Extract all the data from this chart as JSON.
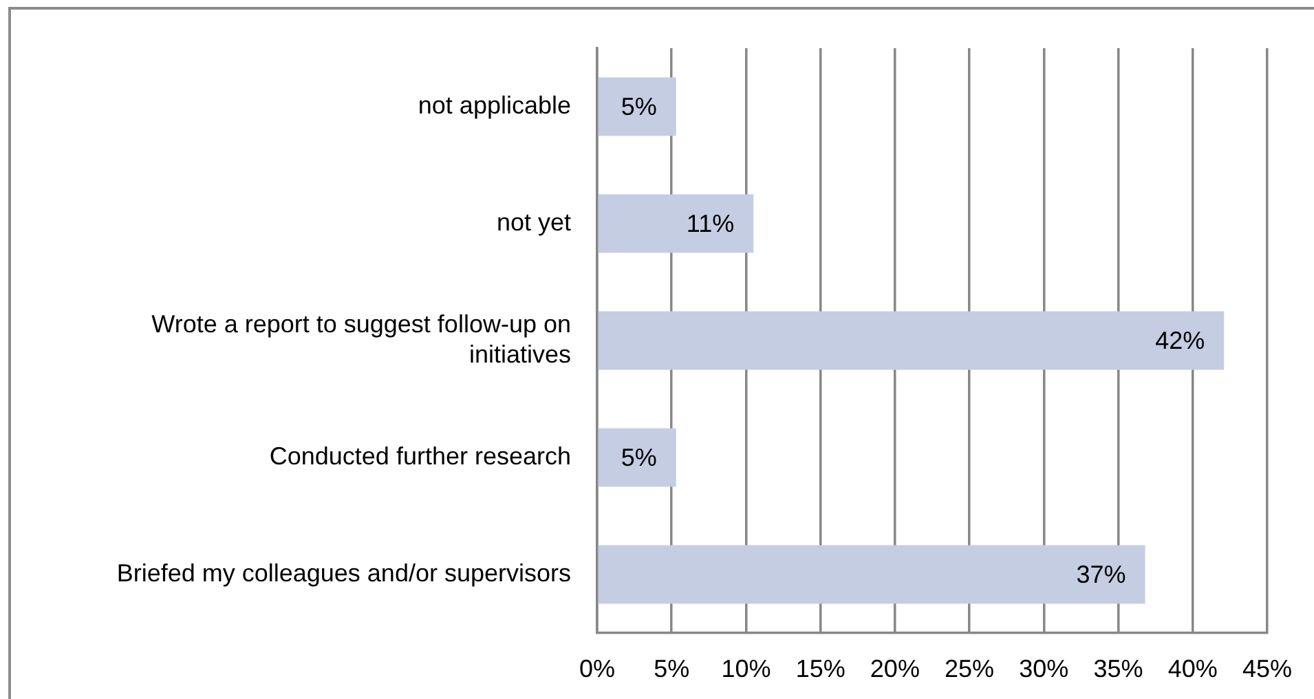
{
  "chart_data": {
    "type": "bar",
    "orientation": "horizontal",
    "categories": [
      "not applicable",
      "not yet",
      "Wrote a report to suggest follow-up on initiatives",
      "Conducted further research",
      "Briefed my colleagues and/or supervisors"
    ],
    "values": [
      5.3,
      10.5,
      42.1,
      5.3,
      36.8
    ],
    "value_labels": [
      "5%",
      "11%",
      "42%",
      "5%",
      "37%"
    ],
    "color": "#c4cde2",
    "xlim": [
      0,
      45
    ],
    "xticks": [
      {
        "value": 0,
        "label": "0%"
      },
      {
        "value": 5,
        "label": "5%"
      },
      {
        "value": 10,
        "label": "10%"
      },
      {
        "value": 15,
        "label": "15%"
      },
      {
        "value": 20,
        "label": "20%"
      },
      {
        "value": 25,
        "label": "25%"
      },
      {
        "value": 30,
        "label": "30%"
      },
      {
        "value": 35,
        "label": "35%"
      },
      {
        "value": 40,
        "label": "40%"
      },
      {
        "value": 45,
        "label": "45%"
      }
    ],
    "grid": "x"
  }
}
